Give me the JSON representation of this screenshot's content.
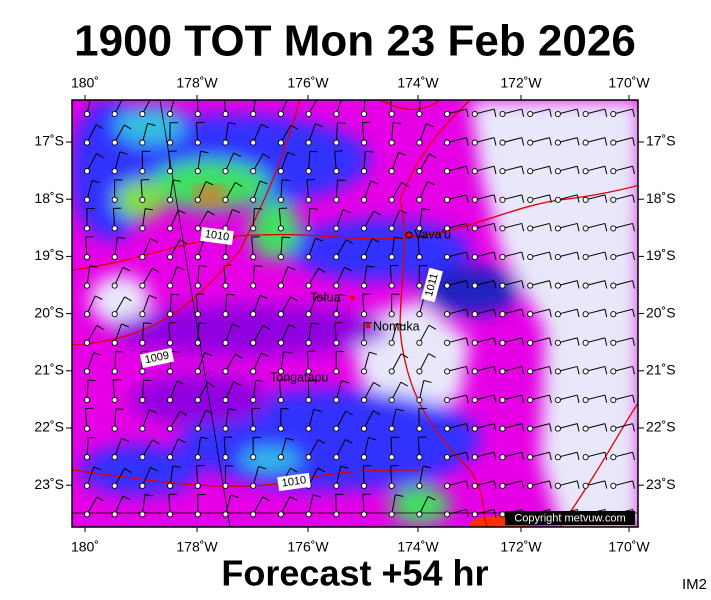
{
  "title": "1900 TOT Mon 23 Feb 2026",
  "footer": "Forecast +54 hr",
  "corner_label": "IM2",
  "copyright": "Copyright metvuw.com",
  "longitudes": [
    "180˚",
    "178˚W",
    "176˚W",
    "174˚W",
    "172˚W",
    "170˚W"
  ],
  "latitudes": [
    "17˚S",
    "18˚S",
    "19˚S",
    "20˚S",
    "21˚S",
    "22˚S",
    "23˚S"
  ],
  "places": [
    "Vava'u",
    "Tofua",
    "Nomuka",
    "Tongatapu"
  ],
  "isobar_labels": [
    "1010",
    "1009",
    "1010",
    "1011"
  ]
}
